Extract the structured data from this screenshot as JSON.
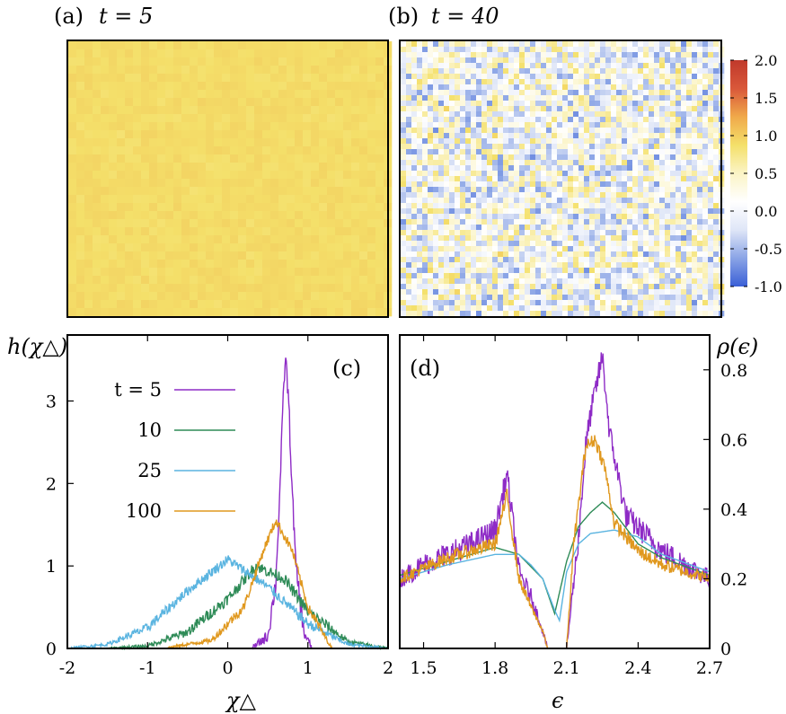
{
  "figure": {
    "panels": {
      "a": {
        "tag": "(a)",
        "time_label": "t = 5",
        "mean_value": 0.9,
        "noise": 0.05
      },
      "b": {
        "tag": "(b)",
        "time_label": "t = 40",
        "mean_value": 0.1,
        "noise": 0.7
      },
      "colorbar": {
        "ticks": [
          "2.0",
          "1.5",
          "1.0",
          "0.5",
          "0.0",
          "-0.5",
          "-1.0"
        ],
        "min": -1.0,
        "max": 2.0,
        "colors": [
          "#3a5fd6",
          "#8aa4e6",
          "#dfe6f7",
          "#ffffff",
          "#fbf4c6",
          "#f4e06a",
          "#f0a94a",
          "#d9583a",
          "#c0392b"
        ]
      }
    }
  },
  "chart_data": [
    {
      "type": "line",
      "panel": "(c)",
      "xlabel": "χ△",
      "ylabel": "h(χ△)",
      "xlim": [
        -2,
        2
      ],
      "ylim": [
        0,
        3.8
      ],
      "xticks": [
        "-2",
        "-1",
        "0",
        "1",
        "2"
      ],
      "yticks": [
        "0",
        "1",
        "2",
        "3"
      ],
      "legend_title_prefix": "t = ",
      "series": [
        {
          "name": "5",
          "color": "#8e2bc6",
          "peak_x": 0.72,
          "peak_h": 3.55,
          "width": 0.12,
          "noise": 0.12,
          "x": [
            0.3,
            0.5,
            0.6,
            0.65,
            0.7,
            0.72,
            0.76,
            0.8,
            0.85,
            0.95,
            1.05
          ],
          "y": [
            0,
            0.15,
            0.8,
            1.9,
            3.2,
            3.55,
            3.0,
            2.0,
            1.0,
            0.2,
            0
          ]
        },
        {
          "name": "10",
          "color": "#2e8b57",
          "peak_x": 0.35,
          "peak_h": 1.0,
          "width": 0.5,
          "noise": 0.07,
          "x": [
            -1.5,
            -1,
            -0.5,
            0,
            0.35,
            0.7,
            1,
            1.5,
            2
          ],
          "y": [
            0,
            0.03,
            0.2,
            0.6,
            1.0,
            0.85,
            0.45,
            0.08,
            0
          ]
        },
        {
          "name": "25",
          "color": "#5ab4e0",
          "peak_x": 0.0,
          "peak_h": 1.08,
          "width": 0.45,
          "noise": 0.06,
          "x": [
            -2,
            -1.5,
            -1,
            -0.5,
            0,
            0.5,
            1,
            1.5,
            2
          ],
          "y": [
            0,
            0.05,
            0.25,
            0.7,
            1.08,
            0.75,
            0.3,
            0.05,
            0
          ]
        },
        {
          "name": "100",
          "color": "#e0981e",
          "peak_x": 0.6,
          "peak_h": 1.55,
          "width": 0.3,
          "noise": 0.06,
          "x": [
            -0.8,
            -0.2,
            0.2,
            0.45,
            0.6,
            0.8,
            1.0,
            1.3
          ],
          "y": [
            0,
            0.1,
            0.5,
            1.2,
            1.55,
            1.2,
            0.5,
            0
          ]
        }
      ]
    },
    {
      "type": "line",
      "panel": "(d)",
      "xlabel": "ϵ",
      "ylabel": "ρ(ϵ)",
      "xlim": [
        1.4,
        2.7
      ],
      "ylim": [
        0,
        0.9
      ],
      "xticks": [
        "1.5",
        "1.8",
        "2.1",
        "2.4",
        "2.7"
      ],
      "yticks": [
        "0",
        "0.2",
        "0.4",
        "0.6",
        "0.8"
      ],
      "series": [
        {
          "name": "5",
          "color": "#8e2bc6",
          "noise": 0.035,
          "x": [
            1.4,
            1.5,
            1.6,
            1.7,
            1.8,
            1.85,
            1.9,
            1.95,
            2.0,
            2.02,
            2.1,
            2.15,
            2.18,
            2.2,
            2.25,
            2.28,
            2.35,
            2.5,
            2.7
          ],
          "y": [
            0.2,
            0.24,
            0.27,
            0.3,
            0.34,
            0.5,
            0.22,
            0.15,
            0.05,
            0.0,
            0.0,
            0.32,
            0.58,
            0.67,
            0.84,
            0.62,
            0.38,
            0.28,
            0.2
          ]
        },
        {
          "name": "10",
          "color": "#2e8b57",
          "noise": 0.0,
          "x": [
            1.4,
            1.6,
            1.8,
            1.9,
            2.0,
            2.05,
            2.1,
            2.15,
            2.2,
            2.25,
            2.3,
            2.4,
            2.5,
            2.7
          ],
          "y": [
            0.21,
            0.25,
            0.29,
            0.27,
            0.2,
            0.1,
            0.25,
            0.35,
            0.39,
            0.42,
            0.39,
            0.3,
            0.26,
            0.21
          ]
        },
        {
          "name": "25",
          "color": "#5ab4e0",
          "noise": 0.0,
          "x": [
            1.4,
            1.6,
            1.8,
            1.9,
            1.95,
            2.0,
            2.05,
            2.07,
            2.1,
            2.15,
            2.2,
            2.3,
            2.4,
            2.5,
            2.7
          ],
          "y": [
            0.2,
            0.24,
            0.27,
            0.27,
            0.24,
            0.2,
            0.11,
            0.08,
            0.22,
            0.3,
            0.33,
            0.34,
            0.32,
            0.27,
            0.22
          ]
        },
        {
          "name": "100",
          "color": "#e0981e",
          "noise": 0.02,
          "x": [
            1.4,
            1.6,
            1.8,
            1.85,
            1.9,
            1.95,
            2.0,
            2.02,
            2.1,
            2.13,
            2.18,
            2.22,
            2.26,
            2.3,
            2.4,
            2.5,
            2.7
          ],
          "y": [
            0.2,
            0.26,
            0.3,
            0.44,
            0.2,
            0.12,
            0.05,
            0.0,
            0.0,
            0.3,
            0.58,
            0.6,
            0.52,
            0.36,
            0.28,
            0.24,
            0.2
          ]
        }
      ]
    }
  ]
}
